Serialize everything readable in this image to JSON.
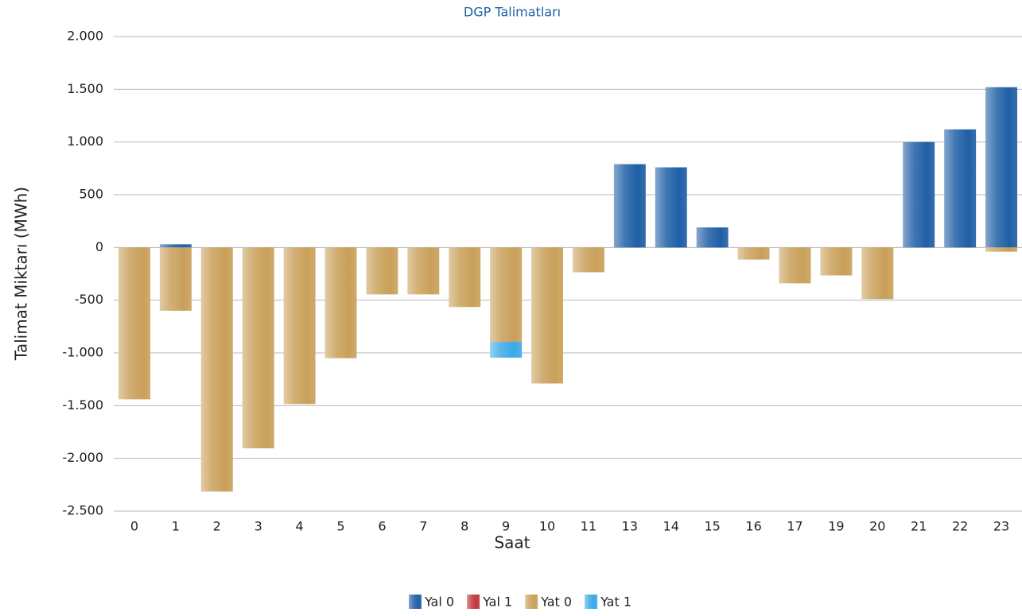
{
  "chart_data": {
    "type": "bar",
    "stacked": true,
    "title": "DGP Talimatları",
    "x_label": "Saat",
    "y_label": "Talimat Miktarı (MWh)",
    "categories": [
      "0",
      "1",
      "2",
      "3",
      "4",
      "5",
      "6",
      "7",
      "8",
      "9",
      "10",
      "11",
      "13",
      "14",
      "15",
      "16",
      "17",
      "19",
      "20",
      "21",
      "22",
      "23"
    ],
    "series": [
      {
        "name": "Yal 0",
        "color": "#1f5fa6",
        "values": [
          0,
          30,
          0,
          0,
          0,
          0,
          0,
          0,
          0,
          0,
          0,
          0,
          790,
          760,
          190,
          0,
          0,
          0,
          0,
          1000,
          1120,
          1520
        ]
      },
      {
        "name": "Yal 1",
        "color": "#c0393b",
        "values": [
          0,
          0,
          0,
          0,
          0,
          0,
          0,
          0,
          0,
          0,
          0,
          0,
          0,
          0,
          0,
          0,
          0,
          0,
          0,
          0,
          0,
          0
        ]
      },
      {
        "name": "Yat 0",
        "color": "#c9a05a",
        "values": [
          -1440,
          -600,
          -2315,
          -1905,
          -1485,
          -1050,
          -445,
          -445,
          -565,
          -895,
          -1290,
          -235,
          0,
          0,
          0,
          -115,
          -340,
          -265,
          -490,
          0,
          0,
          -40
        ]
      },
      {
        "name": "Yat 1",
        "color": "#3aa9e6",
        "values": [
          0,
          0,
          0,
          0,
          0,
          0,
          0,
          0,
          0,
          -150,
          0,
          0,
          0,
          0,
          0,
          0,
          0,
          0,
          0,
          0,
          0,
          0
        ]
      }
    ],
    "ylim": [
      -2500,
      2000
    ],
    "yticks": [
      {
        "value": -2500,
        "label": "-2.500"
      },
      {
        "value": -2000,
        "label": "-2.000"
      },
      {
        "value": -1500,
        "label": "-1.500"
      },
      {
        "value": -1000,
        "label": "-1.000"
      },
      -500,
      0,
      500,
      {
        "value": 1000,
        "label": "1.000"
      },
      {
        "value": 1500,
        "label": "1.500"
      },
      {
        "value": 2000,
        "label": "2.000"
      }
    ],
    "grid": true,
    "legend": "bottom"
  }
}
